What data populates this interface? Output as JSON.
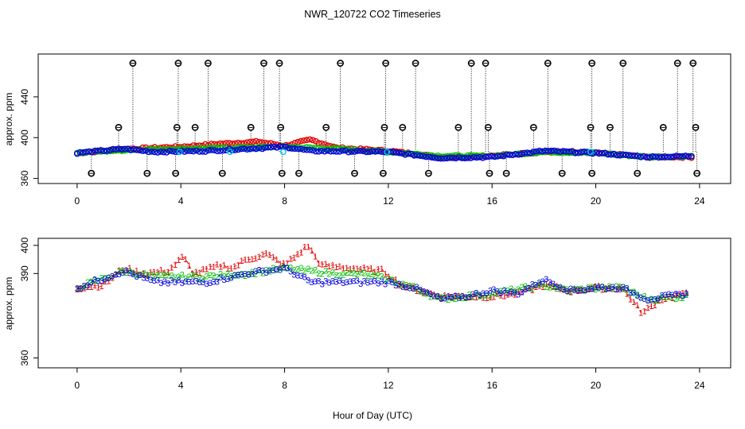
{
  "chart_data": [
    {
      "type": "scatter",
      "title": "NWR_120722  CO2 Timeseries",
      "ylabel": "approx. ppm",
      "xlim": [
        -1.5,
        25.2
      ],
      "ylim": [
        355,
        482
      ],
      "xticks": [
        "0",
        "4",
        "8",
        "12",
        "16",
        "20",
        "24"
      ],
      "xtick_values": [
        0,
        4,
        8,
        12,
        16,
        20,
        24
      ],
      "yticks": [
        "360",
        "400",
        "440"
      ],
      "ytick_values": [
        360,
        400,
        440
      ],
      "colors": {
        "red": "#e00000",
        "green": "#00c000",
        "blue": "#0000e0",
        "cyan": "#00c8e0",
        "black": "#000000"
      },
      "series": [
        {
          "name": "red",
          "anchors": [
            [
              0,
              385
            ],
            [
              2,
              389
            ],
            [
              4,
              391
            ],
            [
              5.5,
              394
            ],
            [
              7,
              396
            ],
            [
              8,
              392
            ],
            [
              9,
              398
            ],
            [
              10,
              390
            ],
            [
              12,
              387
            ],
            [
              13,
              384
            ],
            [
              14,
              381
            ],
            [
              16,
              382
            ],
            [
              18,
              386
            ],
            [
              20,
              385
            ],
            [
              22,
              381
            ],
            [
              23.8,
              381
            ]
          ]
        },
        {
          "name": "green",
          "anchors": [
            [
              0,
              385
            ],
            [
              2,
              388
            ],
            [
              4,
              389
            ],
            [
              6,
              390
            ],
            [
              8,
              391
            ],
            [
              10,
              389
            ],
            [
              12,
              386
            ],
            [
              14,
              382
            ],
            [
              16,
              382
            ],
            [
              18,
              386
            ],
            [
              20,
              385
            ],
            [
              22,
              381
            ],
            [
              23.8,
              382
            ]
          ]
        },
        {
          "name": "blue",
          "anchors": [
            [
              0,
              385
            ],
            [
              1.8,
              389
            ],
            [
              3,
              386
            ],
            [
              5,
              387
            ],
            [
              6.5,
              389
            ],
            [
              8,
              391
            ],
            [
              9,
              387
            ],
            [
              12,
              386
            ],
            [
              14,
              380
            ],
            [
              16,
              381
            ],
            [
              18,
              387
            ],
            [
              20,
              385
            ],
            [
              22,
              381
            ],
            [
              23.8,
              382
            ]
          ]
        }
      ],
      "spikes_high": [
        2.15,
        3.9,
        5.05,
        7.2,
        7.8,
        10.15,
        11.9,
        13.05,
        15.2,
        15.75,
        18.15,
        19.85,
        21.05,
        23.15,
        23.75
      ],
      "spikes_mid": [
        1.6,
        3.85,
        4.55,
        6.7,
        7.85,
        9.6,
        11.85,
        12.55,
        14.7,
        15.85,
        17.6,
        19.8,
        20.55,
        22.6,
        23.85
      ],
      "spikes_low": [
        0.55,
        2.7,
        3.8,
        5.6,
        7.9,
        8.55,
        10.7,
        11.8,
        13.55,
        15.9,
        16.55,
        18.7,
        19.85,
        21.6,
        23.9
      ],
      "levels": {
        "high": 473,
        "mid": 410,
        "low": 365,
        "base": 386
      }
    },
    {
      "type": "scatter",
      "title": "",
      "xlabel": "Hour of Day (UTC)",
      "ylabel": "approx. ppm",
      "xlim": [
        -1.5,
        25.2
      ],
      "ylim": [
        356.5,
        402.5
      ],
      "xticks": [
        "0",
        "4",
        "8",
        "12",
        "16",
        "20",
        "24"
      ],
      "xtick_values": [
        0,
        4,
        8,
        12,
        16,
        20,
        24
      ],
      "yticks": [
        "360",
        "390",
        "400"
      ],
      "ytick_values": [
        360,
        390,
        400
      ],
      "colors": {
        "red": "#e00000",
        "green": "#00c000",
        "blue": "#0000e0"
      },
      "series": [
        {
          "name": "1",
          "marker": "1",
          "color": "red",
          "anchors": [
            [
              0,
              385
            ],
            [
              1,
              386
            ],
            [
              1.8,
              392
            ],
            [
              2.5,
              390
            ],
            [
              3.5,
              391
            ],
            [
              4.1,
              396
            ],
            [
              4.5,
              390
            ],
            [
              5.5,
              393
            ],
            [
              6,
              392
            ],
            [
              6.5,
              395
            ],
            [
              7.3,
              397
            ],
            [
              8,
              393
            ],
            [
              8.9,
              400
            ],
            [
              9.4,
              393
            ],
            [
              10.6,
              392
            ],
            [
              11.8,
              391
            ],
            [
              12.5,
              386
            ],
            [
              14,
              382
            ],
            [
              15,
              382
            ],
            [
              16,
              382
            ],
            [
              17,
              383
            ],
            [
              18,
              386
            ],
            [
              19,
              384
            ],
            [
              20,
              385
            ],
            [
              21,
              385
            ],
            [
              21.8,
              376
            ],
            [
              22.5,
              381
            ],
            [
              23.6,
              383
            ]
          ]
        },
        {
          "name": "2",
          "marker": "2",
          "color": "green",
          "anchors": [
            [
              0,
              385
            ],
            [
              1.8,
              391
            ],
            [
              3,
              389
            ],
            [
              5,
              389
            ],
            [
              6.5,
              390
            ],
            [
              8,
              392
            ],
            [
              9,
              391
            ],
            [
              10,
              390
            ],
            [
              11,
              390
            ],
            [
              12,
              388
            ],
            [
              13,
              385
            ],
            [
              14,
              381
            ],
            [
              16,
              383
            ],
            [
              18,
              386
            ],
            [
              19,
              384
            ],
            [
              20,
              385
            ],
            [
              21,
              385
            ],
            [
              22,
              381
            ],
            [
              23.6,
              382
            ]
          ]
        },
        {
          "name": "3",
          "marker": "3",
          "color": "blue",
          "anchors": [
            [
              0,
              385
            ],
            [
              1.8,
              391
            ],
            [
              3,
              387
            ],
            [
              5,
              387
            ],
            [
              6.5,
              390
            ],
            [
              8,
              392
            ],
            [
              9,
              387
            ],
            [
              12,
              387
            ],
            [
              13,
              385
            ],
            [
              14,
              381
            ],
            [
              15,
              382
            ],
            [
              16,
              384
            ],
            [
              17,
              383
            ],
            [
              18,
              388
            ],
            [
              19,
              384
            ],
            [
              20,
              385
            ],
            [
              21,
              385
            ],
            [
              22,
              381
            ],
            [
              23.6,
              383
            ]
          ]
        }
      ]
    }
  ]
}
